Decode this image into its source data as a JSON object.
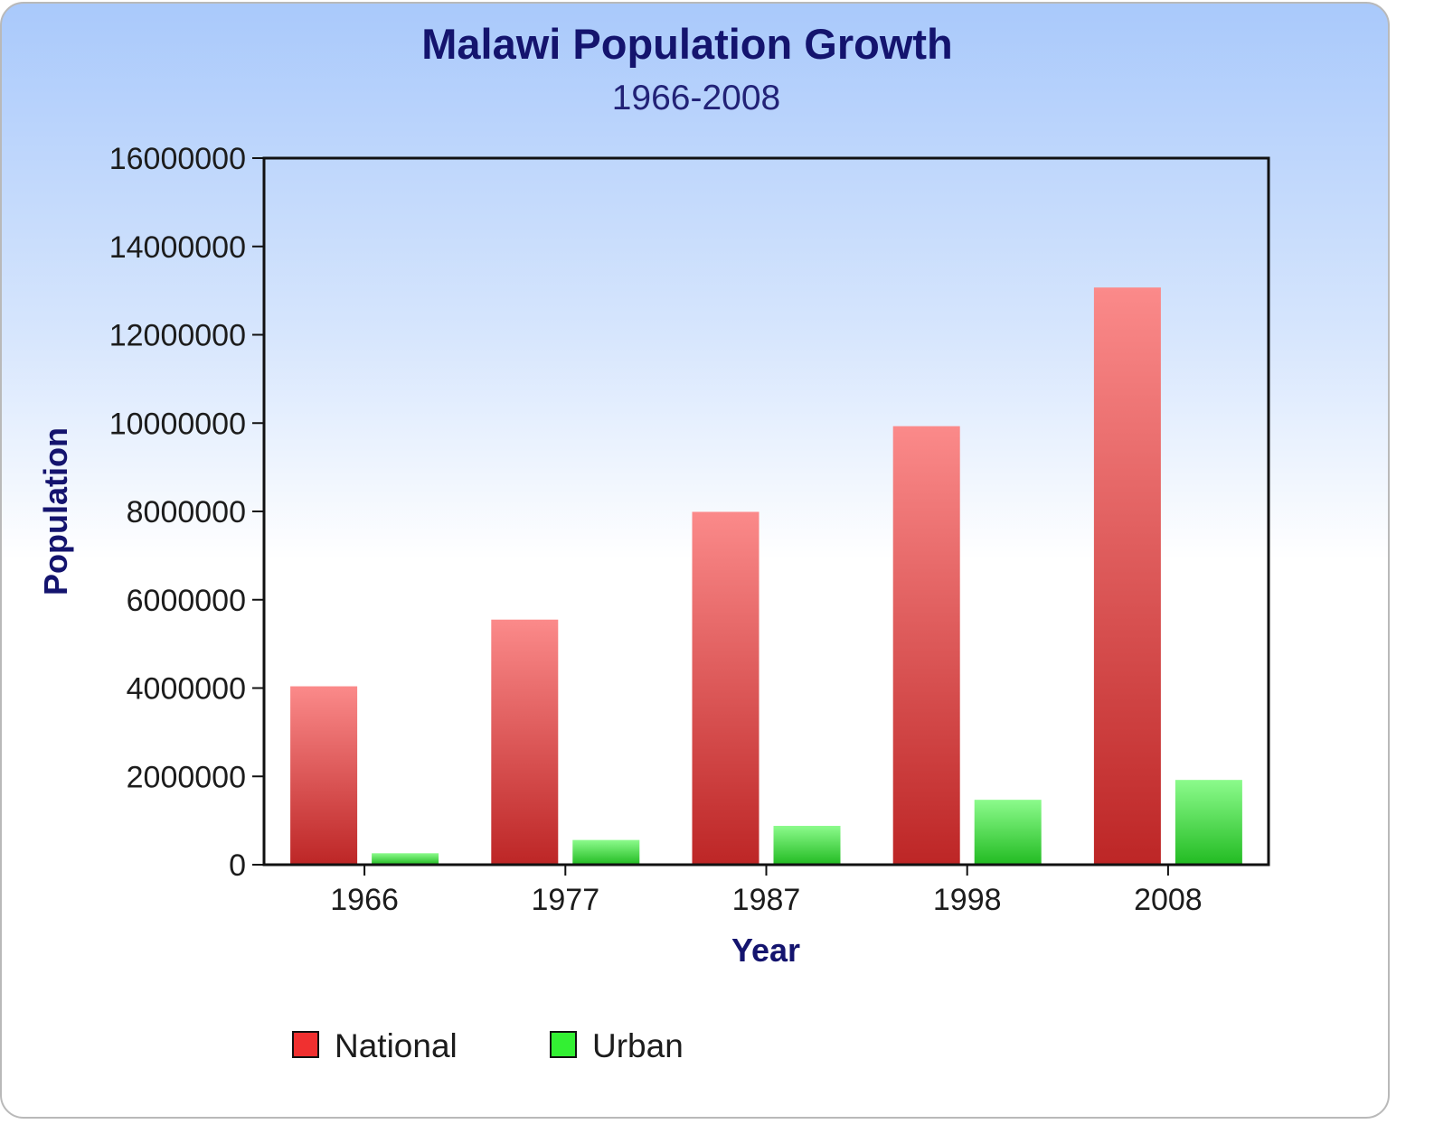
{
  "chart_data": {
    "type": "bar",
    "title": "Malawi Population Growth",
    "subtitle": "1966-2008",
    "xlabel": "Year",
    "ylabel": "Population",
    "categories": [
      "1966",
      "1977",
      "1987",
      "1998",
      "2008"
    ],
    "ylim": [
      0,
      16000000
    ],
    "yticks": [
      "0",
      "2000000",
      "4000000",
      "6000000",
      "8000000",
      "10000000",
      "12000000",
      "14000000",
      "16000000"
    ],
    "series": [
      {
        "name": "National",
        "values": [
          4040000,
          5550000,
          7990000,
          9930000,
          13070000
        ],
        "color": "#e03a3a"
      },
      {
        "name": "Urban",
        "values": [
          260000,
          560000,
          880000,
          1470000,
          1920000
        ],
        "color": "#33dd33"
      }
    ],
    "legend_position": "bottom-left",
    "grid": false
  }
}
